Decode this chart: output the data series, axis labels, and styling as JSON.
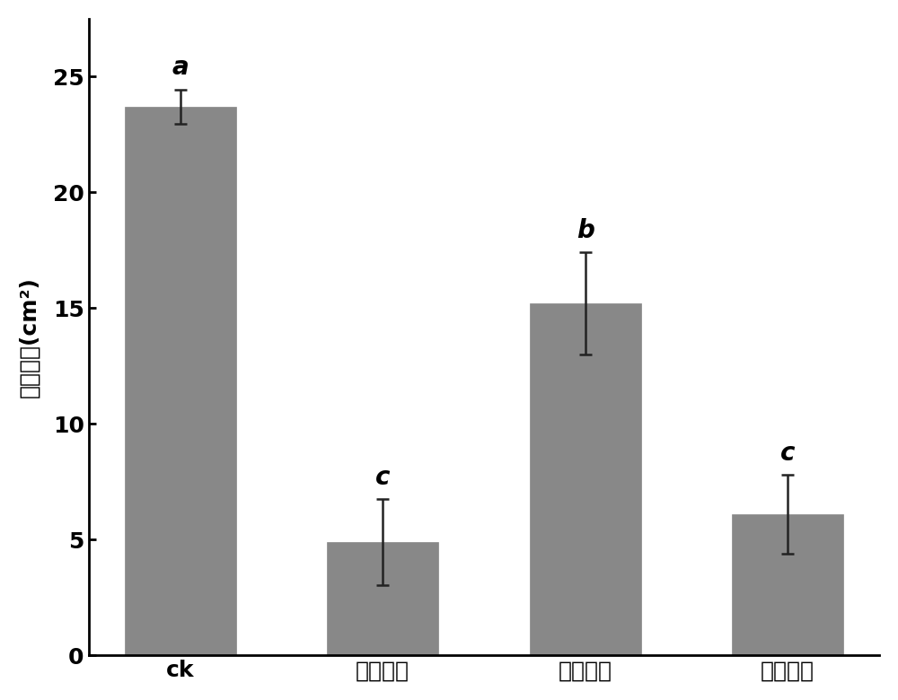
{
  "categories": [
    "ck",
    "黄皮果皮",
    "黄皮果肉",
    "黄皮叶子"
  ],
  "values": [
    23.7,
    4.9,
    15.2,
    6.1
  ],
  "errors": [
    0.75,
    1.85,
    2.2,
    1.7
  ],
  "labels": [
    "a",
    "c",
    "b",
    "c"
  ],
  "bar_color": "#888888",
  "bar_edgecolor": "#888888",
  "ylabel_chinese": "病斌面积",
  "ylabel_unit": "(cm²)",
  "ylim": [
    0,
    27.5
  ],
  "yticks": [
    0,
    5,
    10,
    15,
    20,
    25
  ],
  "error_capsize": 5,
  "error_linewidth": 1.8,
  "error_color": "#222222",
  "bar_width": 0.55,
  "label_fontsize": 20,
  "tick_fontsize": 18,
  "ylabel_fontsize": 18,
  "figsize": [
    10.0,
    7.8
  ],
  "dpi": 100,
  "background_color": "#ffffff",
  "spine_linewidth": 2.0
}
